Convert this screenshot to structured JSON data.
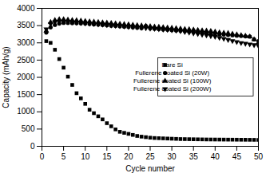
{
  "chart_data": {
    "type": "scatter",
    "xlabel": "Cycle number",
    "ylabel": "Capacity (mAh/g)",
    "x": [
      1,
      2,
      3,
      4,
      5,
      6,
      7,
      8,
      9,
      10,
      11,
      12,
      13,
      14,
      15,
      16,
      17,
      18,
      19,
      20,
      21,
      22,
      23,
      24,
      25,
      26,
      27,
      28,
      29,
      30,
      31,
      32,
      33,
      34,
      35,
      36,
      37,
      38,
      39,
      40,
      41,
      42,
      43,
      44,
      45,
      46,
      47,
      48,
      49,
      50
    ],
    "series": [
      {
        "name": "Bare Si",
        "color": "black",
        "marker": "square",
        "values": [
          3050,
          3000,
          2800,
          2530,
          2280,
          2020,
          1780,
          1540,
          1390,
          1230,
          1060,
          960,
          870,
          780,
          670,
          580,
          490,
          420,
          390,
          360,
          330,
          300,
          280,
          265,
          250,
          240,
          235,
          230,
          225,
          220,
          215,
          210,
          208,
          206,
          204,
          202,
          200,
          198,
          197,
          196,
          195,
          194,
          193,
          192,
          191,
          190,
          189,
          188,
          187,
          186
        ]
      },
      {
        "name": "Fullerene coated Si (20W)",
        "color": "black",
        "marker": "circle",
        "values": [
          3300,
          3450,
          3520,
          3560,
          3580,
          3580,
          3575,
          3570,
          3565,
          3560,
          3550,
          3540,
          3530,
          3520,
          3510,
          3500,
          3490,
          3480,
          3470,
          3460,
          3450,
          3440,
          3430,
          3490,
          3420,
          3410,
          3400,
          3390,
          3380,
          3370,
          3360,
          3350,
          3340,
          3330,
          3320,
          3310,
          3300,
          3290,
          3280,
          3270,
          3250,
          3240,
          3230,
          3220,
          3210,
          3200,
          3190,
          3180,
          3100,
          3050
        ]
      },
      {
        "name": "Fullerene coated Si (100W)",
        "color": "black",
        "marker": "triangle-up",
        "values": [
          3350,
          3600,
          3660,
          3680,
          3680,
          3670,
          3660,
          3650,
          3640,
          3630,
          3620,
          3610,
          3600,
          3590,
          3580,
          3570,
          3560,
          3550,
          3540,
          3530,
          3520,
          3510,
          3500,
          3490,
          3480,
          3470,
          3460,
          3450,
          3440,
          3430,
          3420,
          3410,
          3400,
          3390,
          3380,
          3370,
          3360,
          3350,
          3340,
          3320,
          3300,
          3290,
          3280,
          3260,
          3240,
          3220,
          3200,
          3180,
          3100,
          3000
        ]
      },
      {
        "name": "Fullerene coated Si (200W)",
        "color": "black",
        "marker": "triangle-down",
        "values": [
          3400,
          3550,
          3600,
          3620,
          3620,
          3610,
          3600,
          3590,
          3580,
          3570,
          3560,
          3550,
          3540,
          3530,
          3520,
          3510,
          3500,
          3490,
          3480,
          3470,
          3460,
          3450,
          3440,
          3430,
          3420,
          3410,
          3400,
          3390,
          3380,
          3370,
          3360,
          3340,
          3320,
          3300,
          3280,
          3260,
          3240,
          3220,
          3200,
          3180,
          3150,
          3120,
          3090,
          3060,
          3030,
          3000,
          2980,
          2960,
          2940,
          2920
        ]
      }
    ],
    "xlim": [
      0,
      50
    ],
    "ylim": [
      0,
      4000
    ],
    "xticks": [
      0,
      5,
      10,
      15,
      20,
      25,
      30,
      35,
      40,
      45,
      50
    ],
    "yticks": [
      0,
      500,
      1000,
      1500,
      2000,
      2500,
      3000,
      3500,
      4000
    ],
    "legend": "center right",
    "grid": false
  }
}
